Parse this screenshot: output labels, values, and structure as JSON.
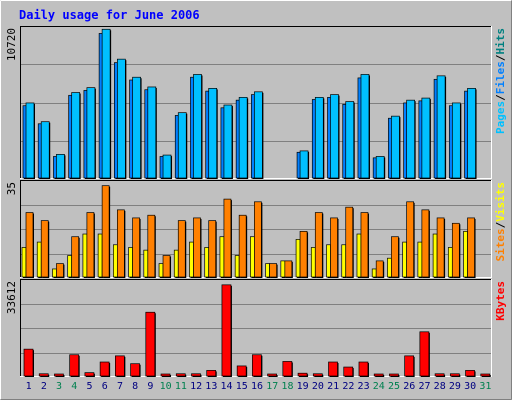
{
  "colors": {
    "background": "#c0c0c0",
    "pages": "#00c0ff",
    "files": "#0080ff",
    "hits": "#008080",
    "sites": "#ff8000",
    "visits": "#ffff00",
    "kbytes": "#ff0000",
    "title": "#0000ff",
    "weekday_label": "#000080",
    "weekend_label": "#00804f",
    "gridline": "#808080"
  },
  "chart_data": [
    {
      "type": "bar",
      "title": "Daily usage for June 2006",
      "panel": "top",
      "ylabel_parts": [
        {
          "text": "Pages",
          "color": "#00c0ff"
        },
        {
          "text": "/",
          "color": "#000000"
        },
        {
          "text": "Files",
          "color": "#0080ff"
        },
        {
          "text": "/",
          "color": "#000000"
        },
        {
          "text": "Hits",
          "color": "#008080"
        }
      ],
      "ymax_label": "10720",
      "ylim": [
        0,
        10720
      ],
      "grid": true,
      "categories": [
        "1",
        "2",
        "3",
        "4",
        "5",
        "6",
        "7",
        "8",
        "9",
        "10",
        "11",
        "12",
        "13",
        "14",
        "15",
        "16",
        "17",
        "18",
        "19",
        "20",
        "21",
        "22",
        "23",
        "24",
        "25",
        "26",
        "27",
        "28",
        "29",
        "30",
        "31"
      ],
      "series": [
        {
          "name": "Hits",
          "values": [
            5400,
            4050,
            1700,
            6150,
            6500,
            10700,
            8550,
            7250,
            6550,
            1650,
            4700,
            7450,
            6450,
            5250,
            5800,
            6200,
            0,
            0,
            1950,
            5800,
            6000,
            5500,
            7450,
            1550,
            4450,
            5600,
            5750,
            7350,
            5400,
            6450,
            0
          ]
        },
        {
          "name": "Files",
          "values": [
            5200,
            3900,
            1550,
            5950,
            6300,
            10400,
            8300,
            7050,
            6350,
            1550,
            4500,
            7250,
            6250,
            5050,
            5600,
            6000,
            0,
            0,
            1850,
            5650,
            5800,
            5300,
            7200,
            1450,
            4300,
            5400,
            5550,
            7100,
            5200,
            6250,
            0
          ]
        }
      ]
    },
    {
      "type": "bar",
      "panel": "middle",
      "ylabel_parts": [
        {
          "text": "Sites",
          "color": "#ff8000"
        },
        {
          "text": "/",
          "color": "#000000"
        },
        {
          "text": "Visits",
          "color": "#ffff00"
        }
      ],
      "ymax_label": "35",
      "ylim": [
        0,
        35
      ],
      "grid": true,
      "categories": [
        "1",
        "2",
        "3",
        "4",
        "5",
        "6",
        "7",
        "8",
        "9",
        "10",
        "11",
        "12",
        "13",
        "14",
        "15",
        "16",
        "17",
        "18",
        "19",
        "20",
        "21",
        "22",
        "23",
        "24",
        "25",
        "26",
        "27",
        "28",
        "29",
        "30",
        "31"
      ],
      "series": [
        {
          "name": "Visits",
          "values": [
            11,
            13,
            3,
            8,
            16,
            16,
            12,
            11,
            10,
            5,
            10,
            13,
            11,
            15,
            8,
            15,
            5,
            6,
            14,
            11,
            12,
            12,
            16,
            3,
            7,
            13,
            13,
            16,
            11,
            17,
            0
          ]
        },
        {
          "name": "Sites",
          "values": [
            24,
            21,
            5,
            15,
            24,
            34,
            25,
            22,
            23,
            8,
            21,
            22,
            21,
            29,
            23,
            28,
            5,
            6,
            17,
            24,
            22,
            26,
            24,
            6,
            15,
            28,
            25,
            22,
            20,
            22,
            0
          ]
        }
      ]
    },
    {
      "type": "bar",
      "panel": "bottom",
      "ylabel_parts": [
        {
          "text": "KBytes",
          "color": "#ff0000"
        }
      ],
      "ymax_label": "33612",
      "ylim": [
        0,
        33612
      ],
      "grid": true,
      "categories": [
        "1",
        "2",
        "3",
        "4",
        "5",
        "6",
        "7",
        "8",
        "9",
        "10",
        "11",
        "12",
        "13",
        "14",
        "15",
        "16",
        "17",
        "18",
        "19",
        "20",
        "21",
        "22",
        "23",
        "24",
        "25",
        "26",
        "27",
        "28",
        "29",
        "30",
        "31"
      ],
      "weekend_days": [
        "3",
        "4",
        "10",
        "11",
        "17",
        "18",
        "24",
        "25",
        "31"
      ],
      "series": [
        {
          "name": "KBytes",
          "values": [
            9600,
            800,
            0,
            7600,
            1200,
            5000,
            7200,
            4400,
            22800,
            0,
            800,
            800,
            2000,
            32600,
            3600,
            7600,
            0,
            5200,
            1000,
            800,
            5000,
            3200,
            5000,
            0,
            0,
            7200,
            15800,
            800,
            800,
            2000,
            0
          ]
        }
      ]
    }
  ]
}
